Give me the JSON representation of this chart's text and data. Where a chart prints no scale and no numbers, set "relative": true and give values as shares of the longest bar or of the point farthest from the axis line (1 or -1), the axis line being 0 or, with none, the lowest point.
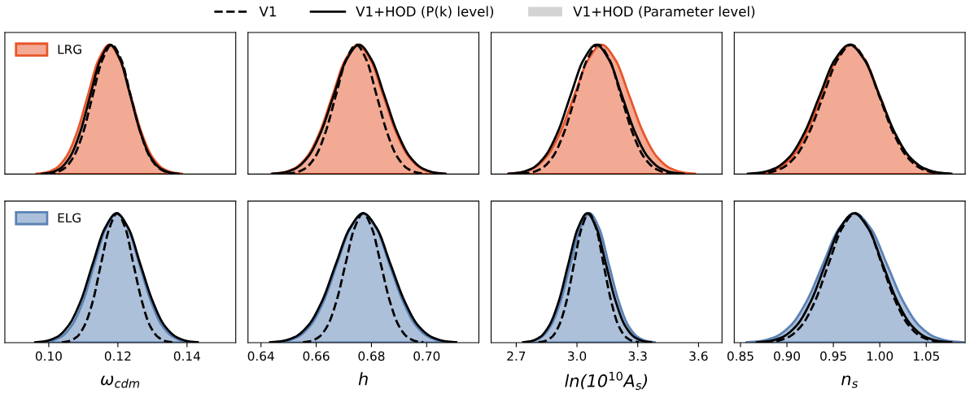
{
  "chart_data": [
    {
      "type": "other",
      "legend": "top",
      "series": [
        {
          "name": "V1",
          "type": "line",
          "color": "#000000",
          "line_style": "dashed"
        },
        {
          "name": "V1+HOD (P(k) level)",
          "type": "line",
          "color": "#000000",
          "line_style": "solid"
        },
        {
          "name": "V1+HOD (Parameter level)",
          "type": "area",
          "color": "#d3d3d3"
        }
      ]
    },
    {
      "type": "line",
      "relative": true,
      "xlim": [
        0.0873,
        0.1541
      ],
      "tick_labels": false,
      "legend": "top left",
      "series": [
        {
          "name": "LRG",
          "type": "area",
          "color": "#e8562a",
          "x": [
            0.0964,
            0.0989,
            0.102,
            0.1051,
            0.1082,
            0.1113,
            0.1144,
            0.1175,
            0.1206,
            0.1237,
            0.1268,
            0.1299,
            0.133,
            0.1361,
            0.1386
          ],
          "values": [
            0.003,
            0.011,
            0.044,
            0.135,
            0.325,
            0.607,
            0.882,
            1,
            0.882,
            0.607,
            0.325,
            0.135,
            0.044,
            0.011,
            0.003
          ]
        },
        {
          "type": "line",
          "color": "#000000",
          "line_style": "dashed",
          "x": [
            0.0995,
            0.1017,
            0.1045,
            0.1072,
            0.11,
            0.1127,
            0.1155,
            0.1182,
            0.121,
            0.1237,
            0.1265,
            0.1292,
            0.132,
            0.1347,
            0.1369
          ],
          "values": [
            0.003,
            0.011,
            0.044,
            0.135,
            0.325,
            0.607,
            0.882,
            1,
            0.882,
            0.607,
            0.325,
            0.135,
            0.044,
            0.011,
            0.003
          ]
        },
        {
          "type": "line",
          "color": "#000000",
          "line_style": "solid",
          "x": [
            0.0981,
            0.1004,
            0.1033,
            0.1062,
            0.1091,
            0.112,
            0.1149,
            0.1178,
            0.1207,
            0.1236,
            0.1265,
            0.1294,
            0.1323,
            0.1352,
            0.1375
          ],
          "values": [
            0.003,
            0.011,
            0.044,
            0.135,
            0.325,
            0.607,
            0.882,
            1,
            0.882,
            0.607,
            0.325,
            0.135,
            0.044,
            0.011,
            0.003
          ]
        }
      ]
    },
    {
      "type": "line",
      "relative": true,
      "xlim": [
        0.6353,
        0.7189
      ],
      "tick_labels": false,
      "series": [
        {
          "type": "area",
          "color": "#e8562a",
          "x": [
            0.6438,
            0.6475,
            0.6521,
            0.6567,
            0.6613,
            0.6659,
            0.6705,
            0.6751,
            0.6797,
            0.6843,
            0.6889,
            0.6935,
            0.6981,
            0.7027,
            0.7064
          ],
          "values": [
            0.003,
            0.011,
            0.044,
            0.135,
            0.325,
            0.607,
            0.882,
            1,
            0.882,
            0.607,
            0.325,
            0.135,
            0.044,
            0.011,
            0.003
          ]
        },
        {
          "type": "line",
          "color": "#000000",
          "line_style": "dashed",
          "x": [
            0.6493,
            0.6523,
            0.656,
            0.6597,
            0.6634,
            0.6671,
            0.6708,
            0.6745,
            0.6782,
            0.6819,
            0.6856,
            0.6893,
            0.693,
            0.6967,
            0.6997
          ],
          "values": [
            0.003,
            0.011,
            0.044,
            0.135,
            0.325,
            0.607,
            0.882,
            1,
            0.882,
            0.607,
            0.325,
            0.135,
            0.044,
            0.011,
            0.003
          ]
        },
        {
          "type": "line",
          "color": "#000000",
          "line_style": "solid",
          "x": [
            0.6442,
            0.6479,
            0.6525,
            0.6571,
            0.6617,
            0.6663,
            0.6709,
            0.6755,
            0.6801,
            0.6847,
            0.6893,
            0.6939,
            0.6985,
            0.7031,
            0.7068
          ],
          "values": [
            0.003,
            0.011,
            0.044,
            0.135,
            0.325,
            0.607,
            0.882,
            1,
            0.882,
            0.607,
            0.325,
            0.135,
            0.044,
            0.011,
            0.003
          ]
        }
      ]
    },
    {
      "type": "line",
      "relative": true,
      "xlim": [
        2.576,
        3.716
      ],
      "tick_labels": false,
      "series": [
        {
          "type": "area",
          "color": "#e8562a",
          "x": [
            2.66,
            2.714,
            2.782,
            2.85,
            2.918,
            2.986,
            3.054,
            3.122,
            3.19,
            3.258,
            3.326,
            3.394,
            3.462,
            3.53,
            3.584
          ],
          "values": [
            0.003,
            0.011,
            0.044,
            0.135,
            0.325,
            0.607,
            0.882,
            1,
            0.882,
            0.607,
            0.325,
            0.135,
            0.044,
            0.011,
            0.003
          ]
        },
        {
          "type": "line",
          "color": "#000000",
          "line_style": "dashed",
          "x": [
            2.724,
            2.769,
            2.825,
            2.881,
            2.937,
            2.993,
            3.049,
            3.105,
            3.161,
            3.217,
            3.273,
            3.329,
            3.385,
            3.441,
            3.486
          ],
          "values": [
            0.003,
            0.011,
            0.044,
            0.135,
            0.325,
            0.607,
            0.882,
            1,
            0.882,
            0.607,
            0.325,
            0.135,
            0.044,
            0.011,
            0.003
          ]
        },
        {
          "type": "line",
          "color": "#000000",
          "line_style": "solid",
          "x": [
            2.663,
            2.714,
            2.778,
            2.841,
            2.905,
            2.968,
            3.032,
            3.095,
            3.159,
            3.222,
            3.286,
            3.349,
            3.413,
            3.476,
            3.527
          ],
          "values": [
            0.003,
            0.011,
            0.044,
            0.135,
            0.325,
            0.607,
            0.882,
            1,
            0.882,
            0.607,
            0.325,
            0.135,
            0.044,
            0.011,
            0.003
          ]
        }
      ]
    },
    {
      "type": "line",
      "relative": true,
      "xlim": [
        0.8433,
        1.0919
      ],
      "tick_labels": false,
      "series": [
        {
          "type": "area",
          "color": "#e8562a",
          "x": [
            0.8617,
            0.8743,
            0.89,
            0.9057,
            0.9214,
            0.9371,
            0.9528,
            0.9685,
            0.9842,
            0.9999,
            1.0156,
            1.0313,
            1.047,
            1.0627,
            1.0753
          ],
          "values": [
            0.003,
            0.011,
            0.044,
            0.135,
            0.325,
            0.607,
            0.882,
            1,
            0.882,
            0.607,
            0.325,
            0.135,
            0.044,
            0.011,
            0.003
          ]
        },
        {
          "type": "line",
          "color": "#000000",
          "line_style": "dashed",
          "x": [
            0.8672,
            0.8792,
            0.8942,
            0.9092,
            0.9242,
            0.9392,
            0.9542,
            0.9692,
            0.9842,
            0.9992,
            1.0142,
            1.0292,
            1.0442,
            1.0592,
            1.0712
          ],
          "values": [
            0.003,
            0.011,
            0.044,
            0.135,
            0.325,
            0.607,
            0.882,
            1,
            0.882,
            0.607,
            0.325,
            0.135,
            0.044,
            0.011,
            0.003
          ]
        },
        {
          "type": "line",
          "color": "#000000",
          "line_style": "solid",
          "x": [
            0.858,
            0.8709,
            0.887,
            0.9031,
            0.9192,
            0.9353,
            0.9514,
            0.9675,
            0.9836,
            0.9997,
            1.0158,
            1.0319,
            1.048,
            1.0641,
            1.077
          ],
          "values": [
            0.003,
            0.011,
            0.044,
            0.135,
            0.325,
            0.607,
            0.882,
            1,
            0.882,
            0.607,
            0.325,
            0.135,
            0.044,
            0.011,
            0.003
          ]
        }
      ]
    },
    {
      "type": "line",
      "relative": true,
      "xlim": [
        0.0873,
        0.1541
      ],
      "xticks": [
        {
          "value": 0.1,
          "label": "0.10"
        },
        0.12,
        0.14
      ],
      "tick_labels": "x",
      "xlabel": "ω$_{cdm}$",
      "legend": "top left",
      "series": [
        {
          "name": "ELG",
          "type": "area",
          "color": "#5b82b5",
          "x": [
            0.0976,
            0.1002,
            0.1035,
            0.1067,
            0.11,
            0.1132,
            0.1165,
            0.1197,
            0.123,
            0.1262,
            0.1295,
            0.1327,
            0.136,
            0.1392,
            0.1418
          ],
          "values": [
            0.003,
            0.011,
            0.044,
            0.135,
            0.325,
            0.607,
            0.882,
            1,
            0.882,
            0.607,
            0.325,
            0.135,
            0.044,
            0.011,
            0.003
          ]
        },
        {
          "type": "line",
          "color": "#000000",
          "line_style": "dashed",
          "x": [
            0.1038,
            0.1057,
            0.1081,
            0.1104,
            0.1128,
            0.1151,
            0.1175,
            0.1198,
            0.1222,
            0.1245,
            0.1269,
            0.1292,
            0.1316,
            0.1339,
            0.1358
          ],
          "values": [
            0.003,
            0.011,
            0.044,
            0.135,
            0.325,
            0.607,
            0.882,
            1,
            0.882,
            0.607,
            0.325,
            0.135,
            0.044,
            0.011,
            0.003
          ]
        },
        {
          "type": "line",
          "color": "#000000",
          "line_style": "solid",
          "x": [
            0.0961,
            0.0989,
            0.1024,
            0.1058,
            0.1093,
            0.1127,
            0.1162,
            0.1196,
            0.1231,
            0.1265,
            0.13,
            0.1334,
            0.1369,
            0.1403,
            0.1431
          ],
          "values": [
            0.003,
            0.011,
            0.044,
            0.135,
            0.325,
            0.607,
            0.882,
            1,
            0.882,
            0.607,
            0.325,
            0.135,
            0.044,
            0.011,
            0.003
          ]
        }
      ]
    },
    {
      "type": "line",
      "relative": true,
      "xlim": [
        0.6353,
        0.7189
      ],
      "xticks": [
        0.64,
        0.66,
        0.68,
        {
          "value": 0.7,
          "label": "0.70"
        }
      ],
      "tick_labels": "x",
      "xlabel": "h",
      "series": [
        {
          "type": "area",
          "color": "#5b82b5",
          "x": [
            0.6447,
            0.6485,
            0.6533,
            0.658,
            0.6628,
            0.6675,
            0.6723,
            0.677,
            0.6818,
            0.6865,
            0.6913,
            0.696,
            0.7008,
            0.7055,
            0.7093
          ],
          "values": [
            0.003,
            0.011,
            0.044,
            0.135,
            0.325,
            0.607,
            0.882,
            1,
            0.882,
            0.607,
            0.325,
            0.135,
            0.044,
            0.011,
            0.003
          ]
        },
        {
          "type": "line",
          "color": "#000000",
          "line_style": "dashed",
          "x": [
            0.6552,
            0.6578,
            0.661,
            0.6642,
            0.6674,
            0.6706,
            0.6738,
            0.677,
            0.6802,
            0.6834,
            0.6866,
            0.6898,
            0.693,
            0.6962,
            0.6988
          ],
          "values": [
            0.003,
            0.011,
            0.044,
            0.135,
            0.325,
            0.607,
            0.882,
            1,
            0.882,
            0.607,
            0.325,
            0.135,
            0.044,
            0.011,
            0.003
          ]
        },
        {
          "type": "line",
          "color": "#000000",
          "line_style": "solid",
          "x": [
            0.6433,
            0.6473,
            0.6523,
            0.6572,
            0.6622,
            0.6671,
            0.6721,
            0.677,
            0.682,
            0.6869,
            0.6919,
            0.6968,
            0.7018,
            0.7067,
            0.7107
          ],
          "values": [
            0.003,
            0.011,
            0.044,
            0.135,
            0.325,
            0.607,
            0.882,
            1,
            0.882,
            0.607,
            0.325,
            0.135,
            0.044,
            0.011,
            0.003
          ]
        }
      ]
    },
    {
      "type": "line",
      "relative": true,
      "xlim": [
        2.576,
        3.716
      ],
      "xticks": [
        2.7,
        {
          "value": 3,
          "label": "3.0"
        },
        3.3,
        3.6
      ],
      "tick_labels": "x",
      "xlabel": "ln(10$^{10}$A$_{s}$)",
      "series": [
        {
          "type": "area",
          "color": "#5b82b5",
          "x": [
            2.739,
            2.777,
            2.825,
            2.872,
            2.92,
            2.967,
            3.015,
            3.062,
            3.11,
            3.157,
            3.205,
            3.252,
            3.3,
            3.347,
            3.385
          ],
          "values": [
            0.003,
            0.011,
            0.044,
            0.135,
            0.325,
            0.607,
            0.882,
            1,
            0.882,
            0.607,
            0.325,
            0.135,
            0.044,
            0.011,
            0.003
          ]
        },
        {
          "type": "line",
          "color": "#000000",
          "line_style": "dashed",
          "x": [
            2.81,
            2.839,
            2.876,
            2.912,
            2.949,
            2.985,
            3.022,
            3.058,
            3.095,
            3.131,
            3.168,
            3.204,
            3.241,
            3.277,
            3.306
          ],
          "values": [
            0.003,
            0.011,
            0.044,
            0.135,
            0.325,
            0.607,
            0.882,
            1,
            0.882,
            0.607,
            0.325,
            0.135,
            0.044,
            0.011,
            0.003
          ]
        },
        {
          "type": "line",
          "color": "#000000",
          "line_style": "solid",
          "x": [
            2.734,
            2.771,
            2.818,
            2.864,
            2.911,
            2.957,
            3.004,
            3.05,
            3.097,
            3.143,
            3.19,
            3.236,
            3.283,
            3.329,
            3.366
          ],
          "values": [
            0.003,
            0.011,
            0.044,
            0.135,
            0.325,
            0.607,
            0.882,
            1,
            0.882,
            0.607,
            0.325,
            0.135,
            0.044,
            0.011,
            0.003
          ]
        }
      ]
    },
    {
      "type": "line",
      "relative": true,
      "xlim": [
        0.8433,
        1.0919
      ],
      "xticks": [
        0.85,
        {
          "value": 0.9,
          "label": "0.90"
        },
        0.95,
        {
          "value": 1,
          "label": "1.00"
        },
        1.05
      ],
      "tick_labels": "x",
      "xlabel": "n$_{s}$",
      "series": [
        {
          "type": "area",
          "color": "#5b82b5",
          "x": [
            0.8562,
            0.87,
            0.8872,
            0.9044,
            0.9216,
            0.9388,
            0.956,
            0.9732,
            0.9904,
            1.0076,
            1.0248,
            1.042,
            1.0592,
            1.0764,
            1.0902
          ],
          "values": [
            0.003,
            0.011,
            0.044,
            0.135,
            0.325,
            0.607,
            0.882,
            1,
            0.882,
            0.607,
            0.325,
            0.135,
            0.044,
            0.011,
            0.003
          ]
        },
        {
          "type": "line",
          "color": "#000000",
          "line_style": "dashed",
          "x": [
            0.8759,
            0.8874,
            0.9018,
            0.9161,
            0.9305,
            0.9448,
            0.9592,
            0.9735,
            0.9879,
            1.0022,
            1.0166,
            1.0309,
            1.0453,
            1.0596,
            1.0711
          ],
          "values": [
            0.003,
            0.011,
            0.044,
            0.135,
            0.325,
            0.607,
            0.882,
            1,
            0.882,
            0.607,
            0.325,
            0.135,
            0.044,
            0.011,
            0.003
          ]
        },
        {
          "type": "line",
          "color": "#000000",
          "line_style": "solid",
          "x": [
            0.8676,
            0.8799,
            0.8953,
            0.9107,
            0.9261,
            0.9415,
            0.9569,
            0.9723,
            0.9877,
            1.0031,
            1.0185,
            1.0339,
            1.0493,
            1.0647,
            1.077
          ],
          "values": [
            0.003,
            0.011,
            0.044,
            0.135,
            0.325,
            0.607,
            0.882,
            1,
            0.882,
            0.607,
            0.325,
            0.135,
            0.044,
            0.011,
            0.003
          ]
        }
      ]
    }
  ]
}
